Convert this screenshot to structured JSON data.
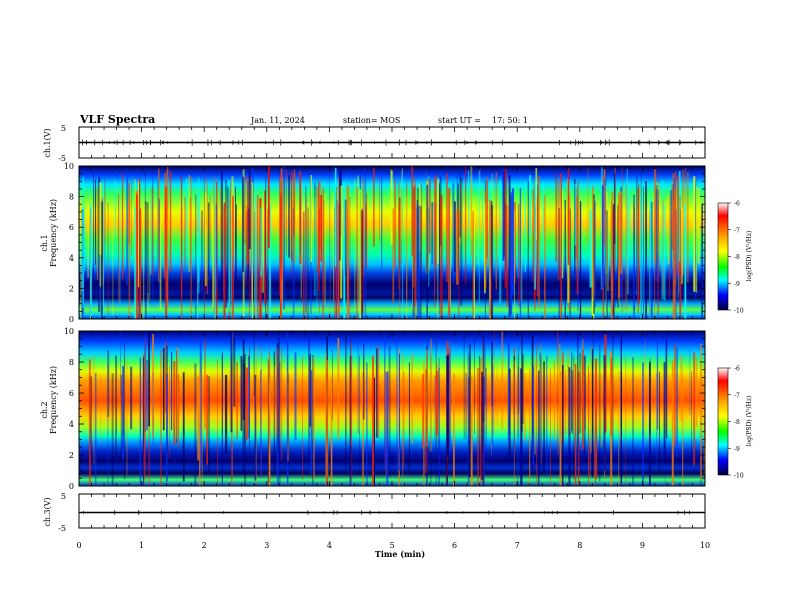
{
  "header": {
    "title": "VLF Spectra",
    "date": "Jan. 11, 2024",
    "station": "station= MOS",
    "start_label": "start UT =",
    "start_time": "17: 50: 1"
  },
  "chart_data": [
    {
      "id": "ch1-waveform",
      "type": "line",
      "ylabel": "ch.1(V)",
      "yticks": [
        "5",
        "-5"
      ],
      "ylim": [
        -5,
        5
      ],
      "xlim": [
        0,
        10
      ],
      "baseline_value": 0
    },
    {
      "id": "ch1-spectrogram",
      "type": "heatmap",
      "ylabel_top": "ch.1",
      "ylabel": "Frequency (kHz)",
      "ylim": [
        0,
        10
      ],
      "yticks": [
        "0",
        "2",
        "4",
        "6",
        "8",
        "10"
      ],
      "xlim": [
        0,
        10
      ],
      "colorbar": {
        "label": "log(PSD) (V²/Hz)",
        "ticks": [
          "-6",
          "-7",
          "-8",
          "-9",
          "-10"
        ],
        "range": [
          -10,
          -6
        ]
      }
    },
    {
      "id": "ch2-spectrogram",
      "type": "heatmap",
      "ylabel_top": "ch.2",
      "ylabel": "Frequency (kHz)",
      "ylim": [
        0,
        10
      ],
      "yticks": [
        "0",
        "2",
        "4",
        "6",
        "8",
        "10"
      ],
      "xlim": [
        0,
        10
      ],
      "colorbar": {
        "label": "log(PSD) (V²/Hz)",
        "ticks": [
          "-6",
          "-7",
          "-8",
          "-9",
          "-10"
        ],
        "range": [
          -10,
          -6
        ]
      }
    },
    {
      "id": "ch3-waveform",
      "type": "line",
      "ylabel": "ch.3(V)",
      "yticks": [
        "5",
        "-5"
      ],
      "ylim": [
        -5,
        5
      ],
      "xlim": [
        0,
        10
      ],
      "baseline_value": 0
    }
  ],
  "x_axis": {
    "label": "Time (min)",
    "ticks": [
      "0",
      "1",
      "2",
      "3",
      "4",
      "5",
      "6",
      "7",
      "8",
      "9",
      "10"
    ]
  }
}
